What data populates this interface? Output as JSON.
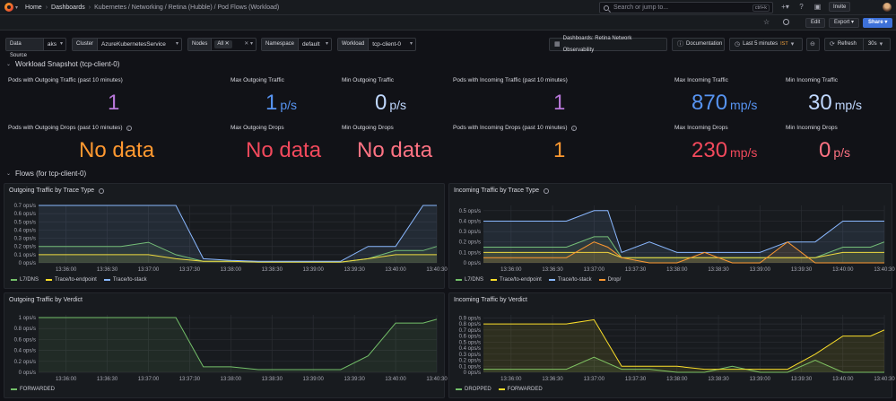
{
  "topbar": {
    "crumbs": [
      "Home",
      "Dashboards",
      "Kubernetes / Networking / Retina (Hubble) / Pod Flows (Workload)"
    ],
    "search_placeholder": "Search or jump to...",
    "search_kbd": "ctrl+k",
    "invite_label": "Invite",
    "icons": [
      "plus-icon",
      "help-icon",
      "news-icon"
    ]
  },
  "subbar": {
    "edit_label": "Edit",
    "export_label": "Export",
    "share_label": "Share"
  },
  "variables": [
    {
      "label": "Data Source",
      "value": "aks"
    },
    {
      "label": "Cluster",
      "value": "AzureKubernetesService"
    },
    {
      "label": "Nodes",
      "value": "All"
    },
    {
      "label": "Namespace",
      "value": "default"
    },
    {
      "label": "Workload",
      "value": "tcp-client-0"
    }
  ],
  "controls": {
    "dashboards_link": "Dashboards: Retina Network Observability",
    "documentation_link": "Documentation",
    "time_range": "Last 5 minutes",
    "timezone": "IST",
    "refresh_label": "Refresh",
    "refresh_interval": "30s"
  },
  "rows": {
    "snapshot": "Workload Snapshot (tcp-client-0)",
    "flows": "Flows (for tcp-client-0)"
  },
  "stats": [
    {
      "title": "Pods with Outgoing Traffic (past 10 minutes)",
      "value": "1",
      "unit": "",
      "color": "#b877d9"
    },
    {
      "title": "Max Outgoing Traffic",
      "value": "1",
      "unit": "p/s",
      "color": "#5794f2"
    },
    {
      "title": "Min Outgoing Traffic",
      "value": "0",
      "unit": "p/s",
      "color": "#c0d8ff"
    },
    {
      "title": "Pods with Incoming Traffic (past 10 minutes)",
      "value": "1",
      "unit": "",
      "color": "#b877d9"
    },
    {
      "title": "Max Incoming Traffic",
      "value": "870",
      "unit": "mp/s",
      "color": "#5794f2"
    },
    {
      "title": "Min Incoming Traffic",
      "value": "30",
      "unit": "mp/s",
      "color": "#c0d8ff"
    },
    {
      "title": "Pods with Outgoing Drops (past 10 minutes)",
      "value": "No data",
      "unit": "",
      "color": "#ff9830"
    },
    {
      "title": "Max Outgoing Drops",
      "value": "No data",
      "unit": "",
      "color": "#f2495c"
    },
    {
      "title": "Min Outgoing Drops",
      "value": "No data",
      "unit": "",
      "color": "#ff7383"
    },
    {
      "title": "Pods with Incoming Drops (past 10 minutes)",
      "value": "1",
      "unit": "",
      "color": "#ff9830"
    },
    {
      "title": "Max Incoming Drops",
      "value": "230",
      "unit": "mp/s",
      "color": "#f2495c"
    },
    {
      "title": "Min Incoming Drops",
      "value": "0",
      "unit": "p/s",
      "color": "#ff7383"
    }
  ],
  "chart_data": [
    {
      "type": "line",
      "title": "Outgoing Traffic by Trace Type",
      "x": [
        "13:35:40",
        "13:36:00",
        "13:36:20",
        "13:36:40",
        "13:37:00",
        "13:37:20",
        "13:37:40",
        "13:38:00",
        "13:38:20",
        "13:38:40",
        "13:39:00",
        "13:39:20",
        "13:39:40",
        "13:40:00",
        "13:40:20",
        "13:40:30"
      ],
      "xticks": [
        "13:36:00",
        "13:36:30",
        "13:37:00",
        "13:37:30",
        "13:38:00",
        "13:38:30",
        "13:39:00",
        "13:39:30",
        "13:40:00",
        "13:40:30"
      ],
      "yticks": [
        "0 ops/s",
        "0.1 ops/s",
        "0.2 ops/s",
        "0.3 ops/s",
        "0.4 ops/s",
        "0.5 ops/s",
        "0.6 ops/s",
        "0.7 ops/s"
      ],
      "ylim": [
        0,
        0.7
      ],
      "series": [
        {
          "name": "L7/DNS",
          "color": "#73bf69",
          "values": [
            0.2,
            0.2,
            0.2,
            0.2,
            0.25,
            0.1,
            0.02,
            0.02,
            0.01,
            0.01,
            0.01,
            0.01,
            0.05,
            0.15,
            0.15,
            0.2
          ]
        },
        {
          "name": "Trace/to-endpoint",
          "color": "#fade2a",
          "values": [
            0.1,
            0.1,
            0.1,
            0.1,
            0.1,
            0.05,
            0.02,
            0.02,
            0.01,
            0.01,
            0.01,
            0.01,
            0.05,
            0.1,
            0.1,
            0.1
          ]
        },
        {
          "name": "Trace/to-stack",
          "color": "#8ab8ff",
          "values": [
            0.7,
            0.7,
            0.7,
            0.7,
            0.7,
            0.7,
            0.05,
            0.03,
            0.02,
            0.02,
            0.02,
            0.02,
            0.2,
            0.2,
            0.7,
            0.7
          ]
        }
      ]
    },
    {
      "type": "line",
      "title": "Incoming Traffic by Trace Type",
      "x": [
        "13:35:40",
        "13:36:00",
        "13:36:20",
        "13:36:40",
        "13:37:00",
        "13:37:10",
        "13:37:20",
        "13:37:40",
        "13:38:00",
        "13:38:20",
        "13:38:40",
        "13:39:00",
        "13:39:20",
        "13:39:40",
        "13:40:00",
        "13:40:20",
        "13:40:30"
      ],
      "xticks": [
        "13:36:00",
        "13:36:30",
        "13:37:00",
        "13:37:30",
        "13:38:00",
        "13:38:30",
        "13:39:00",
        "13:39:30",
        "13:40:00",
        "13:40:30"
      ],
      "yticks": [
        "0 ops/s",
        "0.1 ops/s",
        "0.2 ops/s",
        "0.3 ops/s",
        "0.4 ops/s",
        "0.5 ops/s"
      ],
      "ylim": [
        0,
        0.55
      ],
      "series": [
        {
          "name": "L7/DNS",
          "color": "#73bf69",
          "values": [
            0.15,
            0.15,
            0.15,
            0.15,
            0.25,
            0.25,
            0.05,
            0.05,
            0.05,
            0.05,
            0.05,
            0.05,
            0.05,
            0.05,
            0.15,
            0.15,
            0.2
          ]
        },
        {
          "name": "Trace/to-endpoint",
          "color": "#fade2a",
          "values": [
            0.1,
            0.1,
            0.1,
            0.1,
            0.1,
            0.1,
            0.05,
            0.05,
            0.05,
            0.05,
            0.05,
            0.05,
            0.05,
            0.05,
            0.1,
            0.1,
            0.1
          ]
        },
        {
          "name": "Trace/to-stack",
          "color": "#8ab8ff",
          "values": [
            0.4,
            0.4,
            0.4,
            0.4,
            0.5,
            0.5,
            0.1,
            0.2,
            0.1,
            0.1,
            0.1,
            0.1,
            0.2,
            0.2,
            0.4,
            0.4,
            0.4
          ]
        },
        {
          "name": "Drop/",
          "color": "#ff9830",
          "values": [
            0.05,
            0.05,
            0.05,
            0.05,
            0.2,
            0.15,
            0.05,
            0.0,
            0.0,
            0.1,
            0.0,
            0.0,
            0.2,
            0.0,
            0.0,
            0.0,
            0.0
          ]
        }
      ]
    },
    {
      "type": "area",
      "title": "Outgoing Traffic by Verdict",
      "x": [
        "13:35:40",
        "13:36:00",
        "13:36:20",
        "13:36:40",
        "13:37:00",
        "13:37:20",
        "13:37:40",
        "13:38:00",
        "13:38:20",
        "13:38:40",
        "13:39:00",
        "13:39:20",
        "13:39:40",
        "13:40:00",
        "13:40:20",
        "13:40:30"
      ],
      "xticks": [
        "13:36:00",
        "13:36:30",
        "13:37:00",
        "13:37:30",
        "13:38:00",
        "13:38:30",
        "13:39:00",
        "13:39:30",
        "13:40:00",
        "13:40:30"
      ],
      "yticks": [
        "0 ops/s",
        "0.2 ops/s",
        "0.4 ops/s",
        "0.6 ops/s",
        "0.8 ops/s",
        "1 ops/s"
      ],
      "ylim": [
        0,
        1.05
      ],
      "series": [
        {
          "name": "FORWARDED",
          "color": "#73bf69",
          "values": [
            1,
            1,
            1,
            1,
            1,
            1,
            0.1,
            0.1,
            0.05,
            0.05,
            0.05,
            0.05,
            0.3,
            0.9,
            0.9,
            0.97
          ]
        }
      ]
    },
    {
      "type": "area",
      "title": "Incoming Traffic by Verdict",
      "x": [
        "13:35:40",
        "13:36:00",
        "13:36:20",
        "13:36:40",
        "13:37:00",
        "13:37:20",
        "13:37:40",
        "13:38:00",
        "13:38:20",
        "13:38:40",
        "13:39:00",
        "13:39:20",
        "13:39:40",
        "13:40:00",
        "13:40:20",
        "13:40:30"
      ],
      "xticks": [
        "13:36:00",
        "13:36:30",
        "13:37:00",
        "13:37:30",
        "13:38:00",
        "13:38:30",
        "13:39:00",
        "13:39:30",
        "13:40:00",
        "13:40:30"
      ],
      "yticks": [
        "0 ops/s",
        "0.1 ops/s",
        "0.2 ops/s",
        "0.3 ops/s",
        "0.4 ops/s",
        "0.5 ops/s",
        "0.6 ops/s",
        "0.7 ops/s",
        "0.8 ops/s",
        "0.9 ops/s"
      ],
      "ylim": [
        0,
        0.95
      ],
      "series": [
        {
          "name": "DROPPED",
          "color": "#73bf69",
          "values": [
            0.05,
            0.05,
            0.05,
            0.05,
            0.25,
            0.05,
            0.05,
            0.0,
            0.0,
            0.1,
            0.0,
            0.0,
            0.2,
            0.0,
            0.0,
            0.0
          ]
        },
        {
          "name": "FORWARDED",
          "color": "#fade2a",
          "values": [
            0.8,
            0.8,
            0.8,
            0.8,
            0.87,
            0.1,
            0.1,
            0.1,
            0.05,
            0.05,
            0.05,
            0.05,
            0.3,
            0.6,
            0.6,
            0.7
          ]
        }
      ]
    }
  ]
}
